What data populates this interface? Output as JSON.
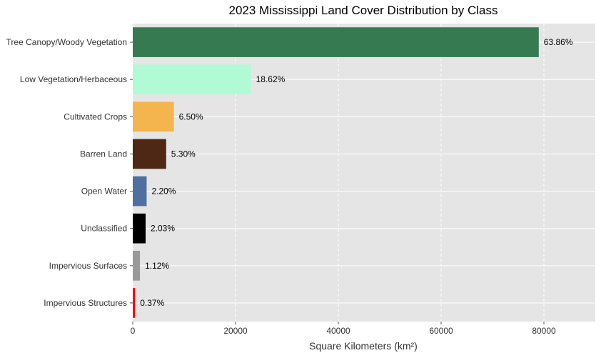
{
  "chart_data": {
    "type": "bar",
    "orientation": "horizontal",
    "title": "2023 Mississippi Land Cover Distribution by Class",
    "xlabel": "Square Kilometers (km²)",
    "ylabel": "",
    "xlim": [
      0,
      90000
    ],
    "xticks": [
      0,
      20000,
      40000,
      60000,
      80000
    ],
    "grid": true,
    "background": "#e5e5e5",
    "categories": [
      "Tree Canopy/Woody Vegetation",
      "Low Vegetation/Herbaceous",
      "Cultivated Crops",
      "Barren Land",
      "Open Water",
      "Unclassified",
      "Impervious Surfaces",
      "Impervious Structures"
    ],
    "values": [
      79000,
      23000,
      8000,
      6500,
      2700,
      2500,
      1400,
      450
    ],
    "labels": [
      "63.86%",
      "18.62%",
      "6.50%",
      "5.30%",
      "2.20%",
      "2.03%",
      "1.12%",
      "0.37%"
    ],
    "colors": [
      "#367a52",
      "#b0fbd6",
      "#f5b54e",
      "#4f2715",
      "#4f6fa1",
      "#000000",
      "#999999",
      "#ff0000"
    ]
  }
}
